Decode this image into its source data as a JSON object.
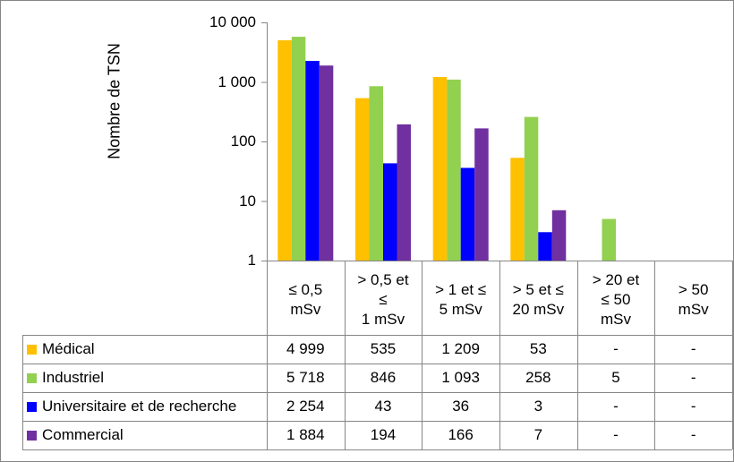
{
  "chart_data": {
    "type": "bar",
    "ylabel": "Nombre de TSN",
    "yscale": "log",
    "ylim": [
      1,
      10000
    ],
    "yticks": [
      "1",
      "10",
      "100",
      "1 000",
      "10 000"
    ],
    "categories": [
      [
        "≤ 0,5",
        "mSv"
      ],
      [
        "> 0,5 et",
        "≤",
        "1 mSv"
      ],
      [
        "> 1 et ≤",
        "5 mSv"
      ],
      [
        "> 5 et ≤",
        "20 mSv"
      ],
      [
        "> 20 et",
        "≤ 50",
        "mSv"
      ],
      [
        "> 50",
        "mSv"
      ]
    ],
    "series": [
      {
        "name": "Médical",
        "color": "#ffc000",
        "values": [
          4999,
          535,
          1209,
          53,
          null,
          null
        ],
        "labels": [
          "4 999",
          "535",
          "1 209",
          "53",
          "-",
          "-"
        ]
      },
      {
        "name": "Industriel",
        "color": "#92d050",
        "values": [
          5718,
          846,
          1093,
          258,
          5,
          null
        ],
        "labels": [
          "5 718",
          "846",
          "1 093",
          "258",
          "5",
          "-"
        ]
      },
      {
        "name": "Universitaire et de recherche",
        "color": "#0000ff",
        "values": [
          2254,
          43,
          36,
          3,
          null,
          null
        ],
        "labels": [
          "2 254",
          "43",
          "36",
          "3",
          "-",
          "-"
        ]
      },
      {
        "name": "Commercial",
        "color": "#7030a0",
        "values": [
          1884,
          194,
          166,
          7,
          null,
          null
        ],
        "labels": [
          "1 884",
          "194",
          "166",
          "7",
          "-",
          "-"
        ]
      }
    ],
    "grid": false,
    "legend": "data-table"
  }
}
